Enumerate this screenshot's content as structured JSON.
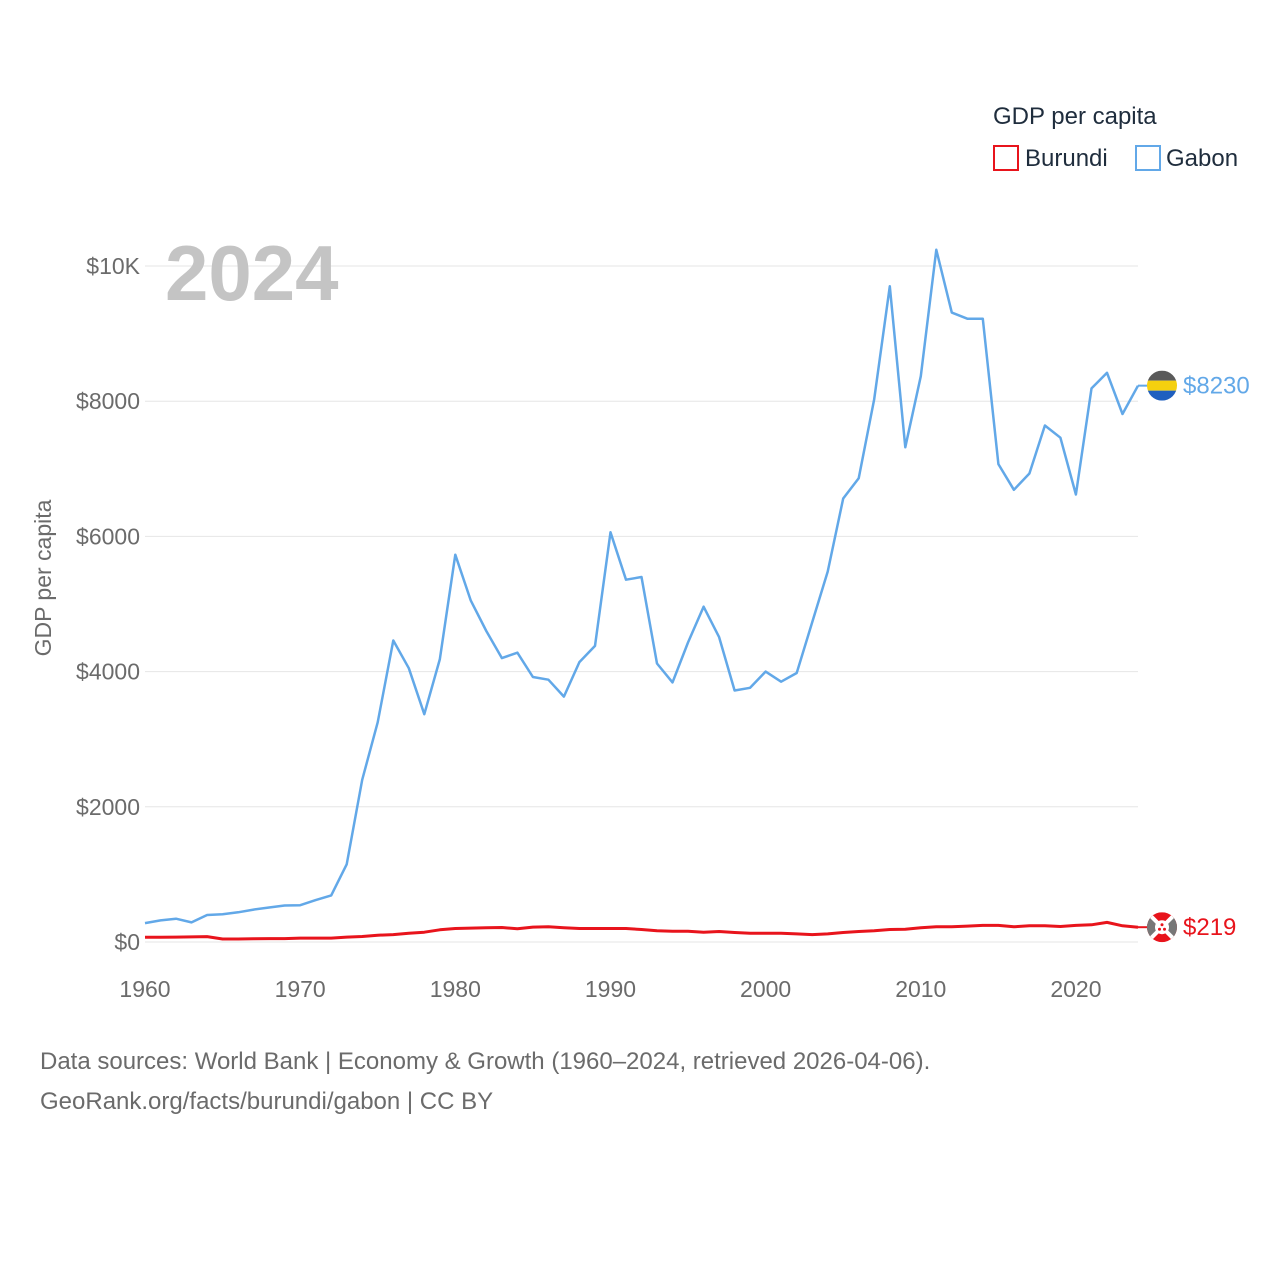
{
  "legend": {
    "title": "GDP per capita",
    "items": [
      "Burundi",
      "Gabon"
    ]
  },
  "year_label": "2024",
  "footer": {
    "line1": "Data sources: World Bank | Economy & Growth (1960–2024, retrieved 2026-04-06).",
    "line2": "GeoRank.org/facts/burundi/gabon | CC BY"
  },
  "colors": {
    "burundi": "#e8141c",
    "gabon": "#62a8e8",
    "grid": "#e6e6e6"
  },
  "chart_data": {
    "type": "line",
    "title": "",
    "xlabel": "",
    "ylabel": "GDP per capita",
    "xlim": [
      1960,
      2024
    ],
    "ylim": [
      0,
      10000
    ],
    "x_ticks": [
      "1960",
      "1970",
      "1980",
      "1990",
      "2000",
      "2010",
      "2020"
    ],
    "y_ticks": [
      "$0",
      "$2000",
      "$4000",
      "$6000",
      "$8000",
      "$10K"
    ],
    "y_tick_values": [
      0,
      2000,
      4000,
      6000,
      8000,
      10000
    ],
    "x": [
      1960,
      1961,
      1962,
      1963,
      1964,
      1965,
      1966,
      1967,
      1968,
      1969,
      1970,
      1971,
      1972,
      1973,
      1974,
      1975,
      1976,
      1977,
      1978,
      1979,
      1980,
      1981,
      1982,
      1983,
      1984,
      1985,
      1986,
      1987,
      1988,
      1989,
      1990,
      1991,
      1992,
      1993,
      1994,
      1995,
      1996,
      1997,
      1998,
      1999,
      2000,
      2001,
      2002,
      2003,
      2004,
      2005,
      2006,
      2007,
      2008,
      2009,
      2010,
      2011,
      2012,
      2013,
      2014,
      2015,
      2016,
      2017,
      2018,
      2019,
      2020,
      2021,
      2022,
      2023,
      2024
    ],
    "series": [
      {
        "name": "Burundi",
        "end_label": "$219",
        "values": [
          70,
          71,
          72,
          75,
          80,
          45,
          45,
          48,
          50,
          50,
          58,
          58,
          58,
          72,
          82,
          100,
          110,
          130,
          145,
          180,
          200,
          205,
          210,
          215,
          195,
          220,
          225,
          210,
          200,
          200,
          200,
          200,
          185,
          165,
          160,
          160,
          145,
          155,
          140,
          130,
          130,
          130,
          120,
          110,
          120,
          140,
          155,
          165,
          185,
          190,
          210,
          225,
          225,
          235,
          245,
          245,
          225,
          240,
          240,
          230,
          245,
          255,
          290,
          240,
          219
        ]
      },
      {
        "name": "Gabon",
        "end_label": "$8230",
        "values": [
          280,
          320,
          345,
          290,
          400,
          410,
          440,
          480,
          510,
          540,
          545,
          620,
          690,
          1150,
          2400,
          3250,
          4460,
          4050,
          3370,
          4180,
          5730,
          5050,
          4600,
          4200,
          4280,
          3920,
          3880,
          3630,
          4140,
          4380,
          6060,
          5360,
          5400,
          4120,
          3840,
          4430,
          4960,
          4510,
          3720,
          3760,
          4000,
          3850,
          3980,
          4730,
          5480,
          6560,
          6860,
          8030,
          9700,
          7320,
          8370,
          10240,
          9310,
          9220,
          9220,
          7070,
          6690,
          6930,
          7640,
          7460,
          6620,
          8190,
          8420,
          7810,
          8230
        ]
      }
    ]
  }
}
